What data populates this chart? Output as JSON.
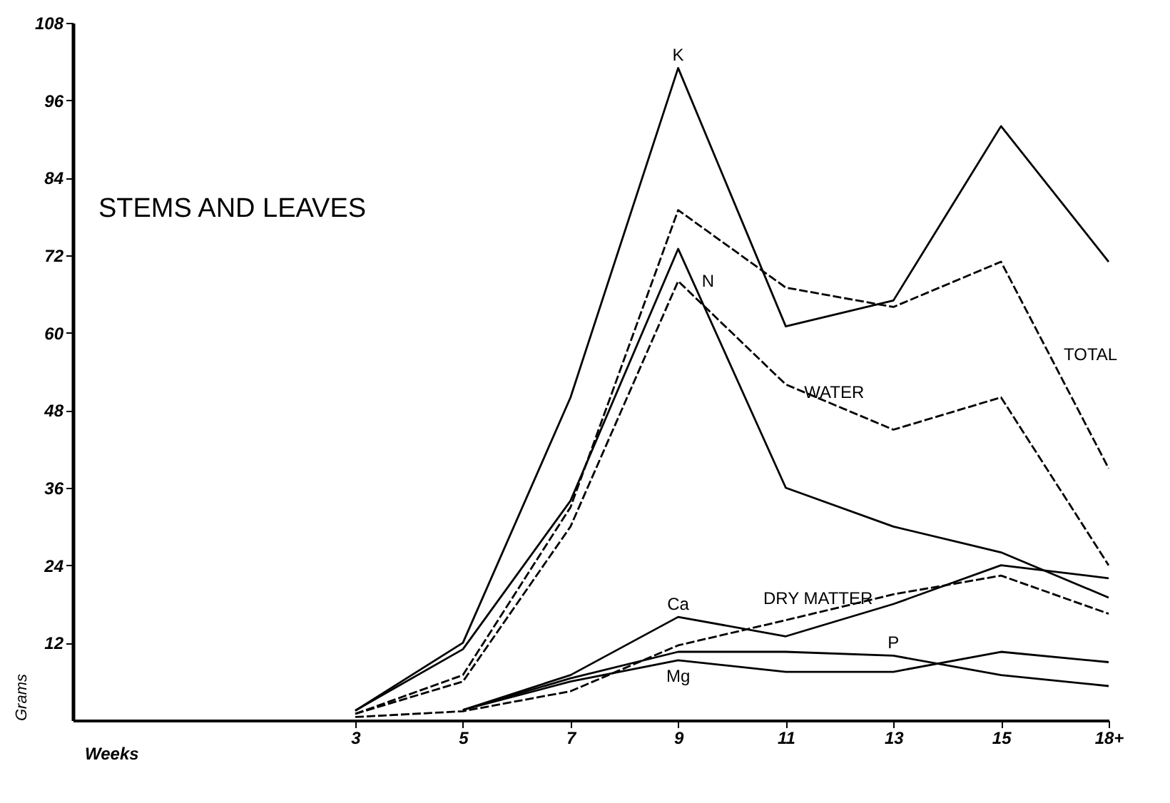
{
  "chart_data": {
    "type": "line",
    "title": "STEMS AND LEAVES",
    "xlabel": "Weeks",
    "ylabel": "Grams",
    "categories": [
      "3",
      "5",
      "7",
      "9",
      "11",
      "13",
      "15",
      "18+"
    ],
    "ylim": [
      0,
      108
    ],
    "yticks": [
      12,
      24,
      36,
      48,
      60,
      72,
      84,
      96,
      108
    ],
    "grid": false,
    "marker": "none",
    "series": [
      {
        "name": "K",
        "color": "#000000",
        "line_style": "solid",
        "values": [
          1.5,
          12,
          50,
          101,
          61,
          65,
          92,
          71
        ]
      },
      {
        "name": "TOTAL",
        "color": "#000000",
        "line_style": "dashed",
        "values": [
          1,
          7,
          33,
          79,
          67,
          64,
          71,
          39
        ]
      },
      {
        "name": "N",
        "color": "#000000",
        "line_style": "solid",
        "values": [
          1.5,
          11,
          34,
          73,
          36,
          30,
          26,
          19
        ]
      },
      {
        "name": "WATER",
        "color": "#000000",
        "line_style": "dashed",
        "values": [
          1,
          6,
          30,
          68,
          52,
          45,
          50,
          24
        ]
      },
      {
        "name": "DRY MATTER",
        "color": "#000000",
        "line_style": "dashed",
        "values": [
          0.5,
          1.4,
          4.5,
          11.6,
          15.5,
          19.5,
          22.4,
          16.5
        ]
      },
      {
        "name": "Ca",
        "color": "#000000",
        "line_style": "solid",
        "values": [
          null,
          1.6,
          7,
          16,
          13,
          18,
          24,
          22
        ]
      },
      {
        "name": "P",
        "color": "#000000",
        "line_style": "solid",
        "values": [
          null,
          1.6,
          6.5,
          10.6,
          10.6,
          10,
          7,
          5.3
        ]
      },
      {
        "name": "Mg",
        "color": "#000000",
        "line_style": "solid",
        "values": [
          null,
          1.6,
          6,
          9.3,
          7.5,
          7.5,
          10.6,
          9
        ]
      }
    ]
  }
}
